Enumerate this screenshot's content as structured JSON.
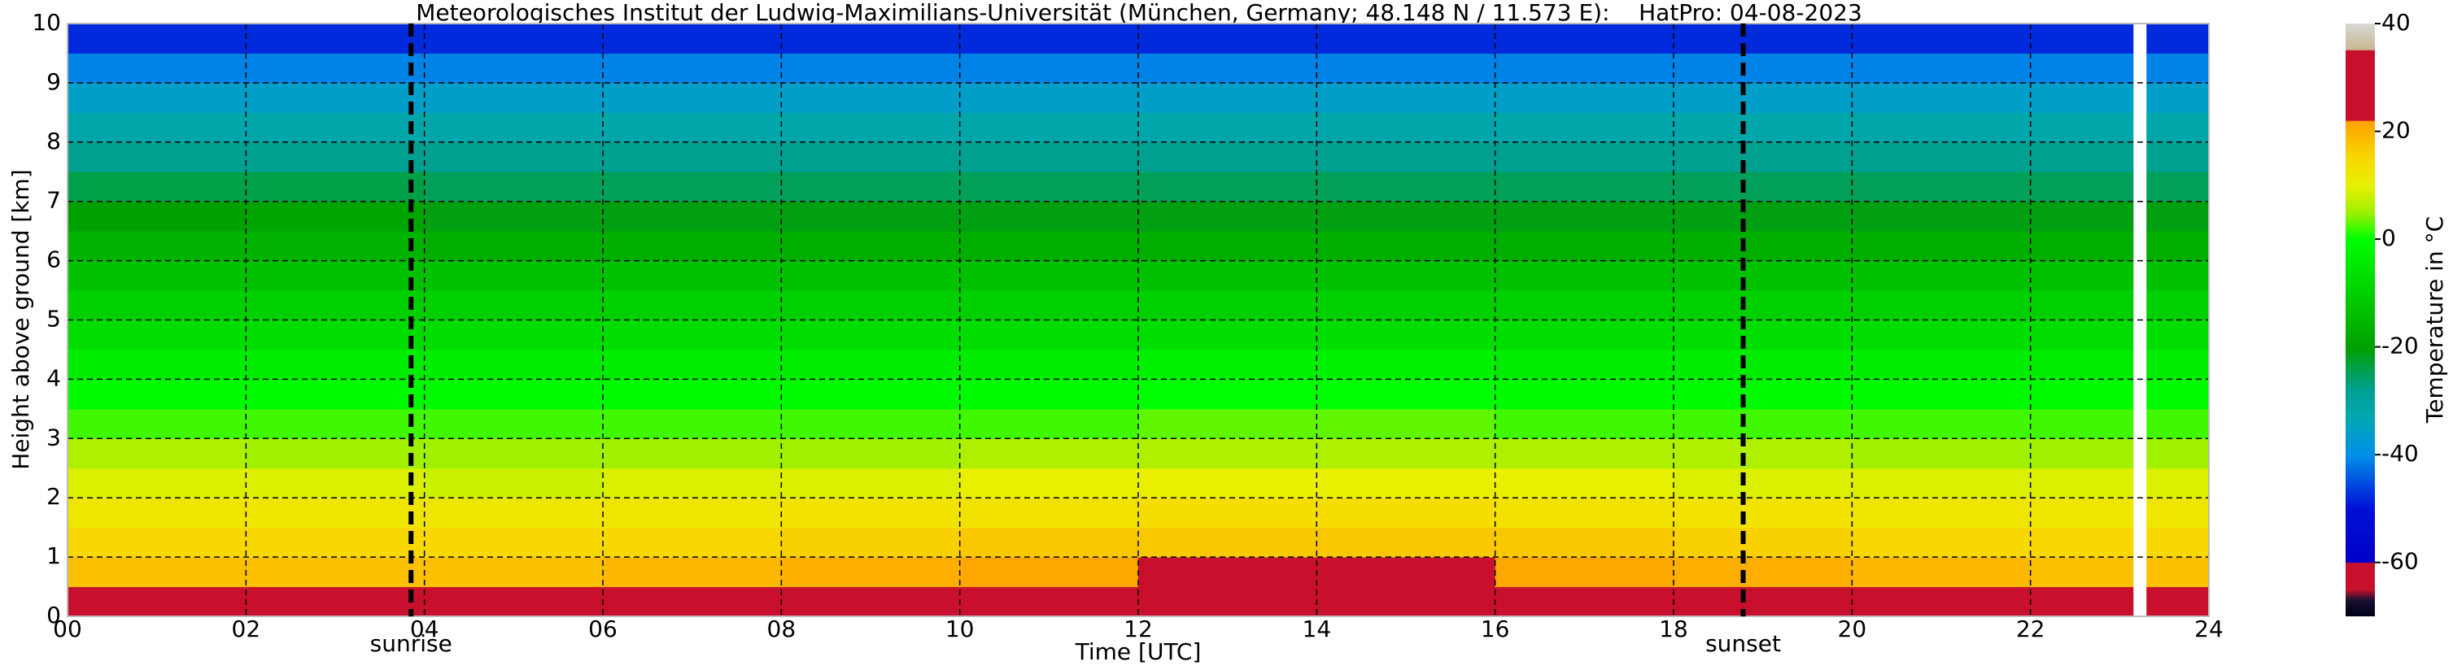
{
  "chart_data": {
    "type": "heatmap",
    "title": "Meteorologisches Institut der Ludwig-Maximilians-Universität (München, Germany; 48.148 N / 11.573 E):    HatPro: 04-08-2023",
    "x_label": "Time [UTC]",
    "y_label": "Height above ground [km]",
    "colorbar_label": "Temperature in °C",
    "x": [
      0,
      2,
      4,
      6,
      8,
      10,
      12,
      14,
      16,
      18,
      20,
      22,
      23.15,
      23.3,
      24
    ],
    "y": [
      0,
      0.5,
      1,
      1.5,
      2,
      2.5,
      3,
      3.5,
      4,
      4.5,
      5,
      5.5,
      6,
      6.5,
      7,
      7.5,
      8,
      8.5,
      9,
      9.5,
      10
    ],
    "z": [
      [
        22,
        22,
        23,
        24,
        25,
        26,
        27,
        27,
        26,
        24,
        23,
        22,
        null,
        22
      ],
      [
        18,
        18,
        18,
        19,
        20,
        21,
        22,
        22,
        21,
        20,
        19,
        18,
        null,
        18
      ],
      [
        15,
        15,
        15,
        15,
        16,
        17,
        17,
        17,
        17,
        16,
        15,
        15,
        null,
        15
      ],
      [
        12,
        12,
        12,
        12,
        13,
        13,
        14,
        14,
        13,
        13,
        12,
        12,
        null,
        12
      ],
      [
        9,
        9,
        8,
        9,
        9,
        10,
        10,
        10,
        10,
        9,
        9,
        9,
        null,
        9
      ],
      [
        6,
        5,
        5,
        5,
        5,
        6,
        6,
        6,
        6,
        6,
        5,
        5,
        null,
        5
      ],
      [
        2,
        2,
        2,
        2,
        2,
        2,
        3,
        3,
        2,
        2,
        2,
        2,
        null,
        2
      ],
      [
        -1,
        -1,
        -1,
        -1,
        -1,
        -1,
        0,
        0,
        -1,
        -1,
        -1,
        -1,
        null,
        -1
      ],
      [
        -4,
        -4,
        -4,
        -4,
        -4,
        -4,
        -3,
        -3,
        -4,
        -4,
        -4,
        -4,
        null,
        -4
      ],
      [
        -7,
        -7,
        -7,
        -7,
        -7,
        -7,
        -7,
        -7,
        -7,
        -7,
        -7,
        -7,
        null,
        -7
      ],
      [
        -10,
        -10,
        -10,
        -10,
        -10,
        -10,
        -10,
        -10,
        -10,
        -10,
        -10,
        -10,
        null,
        -10
      ],
      [
        -13,
        -13,
        -13,
        -13,
        -13,
        -13,
        -13,
        -13,
        -13,
        -13,
        -13,
        -13,
        null,
        -13
      ],
      [
        -16,
        -16,
        -17,
        -17,
        -17,
        -17,
        -17,
        -17,
        -17,
        -17,
        -17,
        -17,
        null,
        -17
      ],
      [
        -20,
        -19,
        -21,
        -21,
        -21,
        -21,
        -21,
        -21,
        -21,
        -21,
        -21,
        -21,
        null,
        -21
      ],
      [
        -24,
        -24,
        -25,
        -25,
        -25,
        -25,
        -25,
        -25,
        -25,
        -25,
        -25,
        -25,
        null,
        -25
      ],
      [
        -28,
        -28,
        -28,
        -28,
        -28,
        -28,
        -28,
        -28,
        -28,
        -28,
        -28,
        -28,
        null,
        -28
      ],
      [
        -32,
        -32,
        -32,
        -32,
        -32,
        -32,
        -32,
        -32,
        -32,
        -32,
        -32,
        -32,
        null,
        -32
      ],
      [
        -36,
        -36,
        -36,
        -36,
        -36,
        -36,
        -36,
        -36,
        -36,
        -36,
        -36,
        -36,
        null,
        -36
      ],
      [
        -41,
        -41,
        -41,
        -41,
        -41,
        -41,
        -41,
        -41,
        -41,
        -41,
        -41,
        -41,
        null,
        -41
      ],
      [
        -48,
        -48,
        -48,
        -48,
        -48,
        -48,
        -48,
        -48,
        -48,
        -48,
        -48,
        -48,
        null,
        -48
      ]
    ],
    "xlim": [
      0,
      24
    ],
    "ylim": [
      0,
      10
    ],
    "xticks": [
      {
        "value": 0,
        "label": "00"
      },
      {
        "value": 2,
        "label": "02"
      },
      {
        "value": 4,
        "label": "04"
      },
      {
        "value": 6,
        "label": "06"
      },
      {
        "value": 8,
        "label": "08"
      },
      10,
      12,
      14,
      16,
      18,
      20,
      22,
      24
    ],
    "yticks": [
      0,
      1,
      2,
      3,
      4,
      5,
      6,
      7,
      8,
      9,
      10
    ],
    "zlim": [
      -70,
      40
    ],
    "zticks": [
      -60,
      -40,
      -20,
      0,
      20,
      40
    ],
    "grid": true,
    "colorscale": [
      {
        "value": -70,
        "color": "#000018"
      },
      {
        "value": -67,
        "color": "#1a1030"
      },
      {
        "value": -65,
        "color": "#c8102e"
      },
      {
        "value": -60.1,
        "color": "#c8102e"
      },
      {
        "value": -60,
        "color": "#0000c8"
      },
      {
        "value": -50,
        "color": "#0010d8"
      },
      {
        "value": -45,
        "color": "#0050e0"
      },
      {
        "value": -40,
        "color": "#0090e8"
      },
      {
        "value": -33,
        "color": "#00a8b0"
      },
      {
        "value": -28,
        "color": "#00a090"
      },
      {
        "value": -20,
        "color": "#00a000"
      },
      {
        "value": -10,
        "color": "#00d000"
      },
      {
        "value": 0,
        "color": "#00ff00"
      },
      {
        "value": 5,
        "color": "#a0f000"
      },
      {
        "value": 10,
        "color": "#e8f000"
      },
      {
        "value": 15,
        "color": "#f8d800"
      },
      {
        "value": 21.9,
        "color": "#ffa000"
      },
      {
        "value": 22,
        "color": "#c8102e"
      },
      {
        "value": 35,
        "color": "#c8102e"
      },
      {
        "value": 35.1,
        "color": "#c8b890"
      },
      {
        "value": 40,
        "color": "#d8d8d8"
      }
    ],
    "annotations": [
      {
        "x": 3.85,
        "label": "sunrise"
      },
      {
        "x": 18.78,
        "label": "sunset"
      }
    ]
  }
}
